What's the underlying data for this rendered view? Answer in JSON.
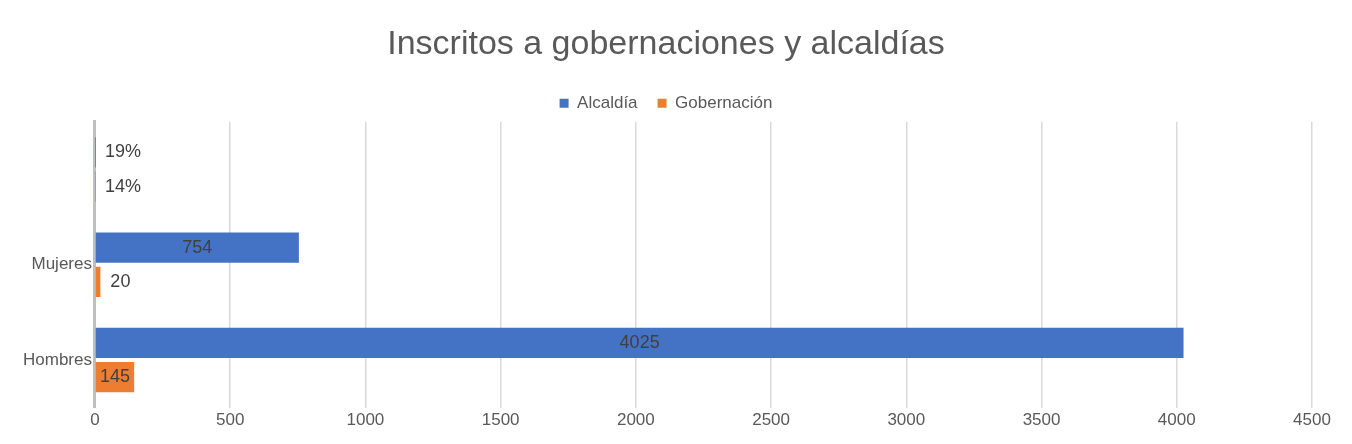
{
  "chart_data": {
    "type": "bar",
    "orientation": "horizontal",
    "title": "Inscritos a gobernaciones y alcaldías",
    "categories": [
      null,
      "Mujeres",
      "Hombres"
    ],
    "series": [
      {
        "name": "Alcaldía",
        "color": "#4472c4",
        "values": [
          0.19,
          754,
          4025
        ],
        "value_labels": [
          "19%",
          "754",
          "4025"
        ]
      },
      {
        "name": "Gobernación",
        "color": "#ed7d31",
        "values": [
          0.14,
          20,
          145
        ],
        "value_labels": [
          "14%",
          "20",
          "145"
        ]
      }
    ],
    "xlim": [
      0,
      4500
    ],
    "xticks": [
      0,
      500,
      1000,
      1500,
      2000,
      2500,
      3000,
      3500,
      4000,
      4500
    ],
    "grid": "x",
    "legend": "top"
  }
}
